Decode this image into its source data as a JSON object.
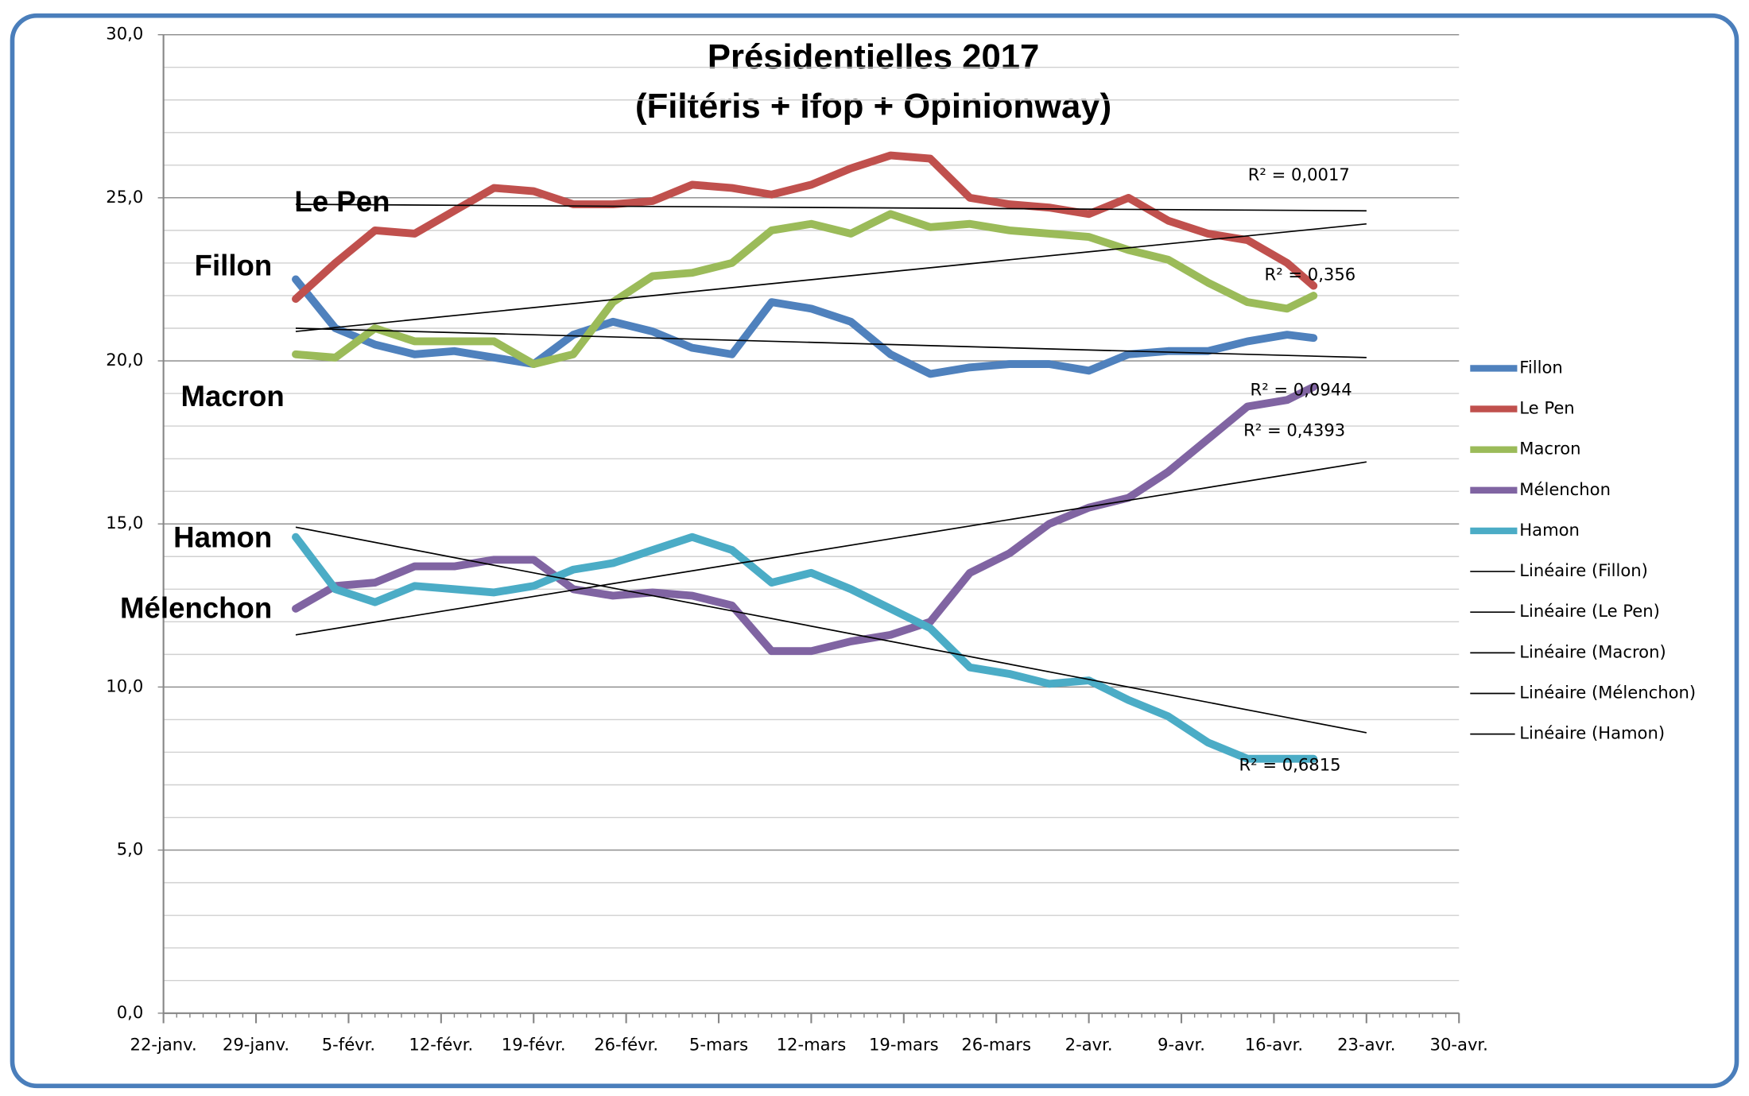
{
  "chart_data": {
    "type": "line",
    "title": "Présidentielles 2017",
    "subtitle": "(Filtéris + Ifop + Opinionway)",
    "x": [
      32,
      35,
      38,
      41,
      44,
      47,
      50,
      53,
      56,
      59,
      62,
      65,
      68,
      71,
      74,
      77,
      80,
      83,
      86,
      89,
      92,
      95,
      98,
      101,
      104,
      107,
      109
    ],
    "series": [
      {
        "name": "Fillon",
        "color": "#4f81bd",
        "values": [
          22.5,
          21.0,
          20.5,
          20.2,
          20.3,
          20.1,
          19.9,
          20.8,
          21.2,
          20.9,
          20.4,
          20.2,
          21.8,
          21.6,
          21.2,
          20.2,
          19.6,
          19.8,
          19.9,
          19.9,
          19.7,
          20.2,
          20.3,
          20.3,
          20.6,
          20.8,
          20.7
        ]
      },
      {
        "name": "Le Pen",
        "color": "#c0504d",
        "values": [
          21.9,
          23.0,
          24.0,
          23.9,
          24.6,
          25.3,
          25.2,
          24.8,
          24.8,
          24.9,
          25.4,
          25.3,
          25.1,
          25.4,
          25.9,
          26.3,
          26.2,
          25.0,
          24.8,
          24.7,
          24.5,
          25.0,
          24.3,
          23.9,
          23.7,
          23.0,
          22.3
        ]
      },
      {
        "name": "Macron",
        "color": "#9bbb59",
        "values": [
          20.2,
          20.1,
          21.0,
          20.6,
          20.6,
          20.6,
          19.9,
          20.2,
          21.8,
          22.6,
          22.7,
          23.0,
          24.0,
          24.2,
          23.9,
          24.5,
          24.1,
          24.2,
          24.0,
          23.9,
          23.8,
          23.4,
          23.1,
          22.4,
          21.8,
          21.6,
          22.0
        ]
      },
      {
        "name": "Mélenchon",
        "color": "#8064a2",
        "values": [
          12.4,
          13.1,
          13.2,
          13.7,
          13.7,
          13.9,
          13.9,
          13.0,
          12.8,
          12.9,
          12.8,
          12.5,
          11.1,
          11.1,
          11.4,
          11.6,
          12.0,
          13.5,
          14.1,
          15.0,
          15.5,
          15.8,
          16.6,
          17.6,
          18.6,
          18.8,
          19.2
        ]
      },
      {
        "name": "Hamon",
        "color": "#4bacc6",
        "values": [
          14.6,
          13.0,
          12.6,
          13.1,
          13.0,
          12.9,
          13.1,
          13.6,
          13.8,
          14.2,
          14.6,
          14.2,
          13.2,
          13.5,
          13.0,
          12.4,
          11.8,
          10.6,
          10.4,
          10.1,
          10.2,
          9.6,
          9.1,
          8.3,
          7.8,
          7.8,
          7.8
        ]
      }
    ],
    "trendlines": [
      {
        "name": "Linéaire (Fillon)",
        "color": "#000000",
        "x": [
          32,
          113
        ],
        "values": [
          21.0,
          20.1
        ],
        "r2_label": "R² = 0,0944"
      },
      {
        "name": "Linéaire (Le Pen)",
        "color": "#000000",
        "x": [
          32,
          113
        ],
        "values": [
          24.8,
          24.6
        ],
        "r2_label": "R² = 0,0017"
      },
      {
        "name": "Linéaire (Macron)",
        "color": "#000000",
        "x": [
          32,
          113
        ],
        "values": [
          20.9,
          24.2
        ],
        "r2_label": "R² = 0,356"
      },
      {
        "name": "Linéaire (Mélenchon)",
        "color": "#000000",
        "x": [
          32,
          113
        ],
        "values": [
          11.6,
          16.9
        ],
        "r2_label": "R² = 0,4393"
      },
      {
        "name": "Linéaire (Hamon)",
        "color": "#000000",
        "x": [
          32,
          113
        ],
        "values": [
          14.9,
          8.6
        ],
        "r2_label": "R² = 0,6815"
      }
    ],
    "annotations": [
      "Le Pen",
      "Fillon",
      "Macron",
      "Hamon",
      "Mélenchon"
    ],
    "xlim": [
      22,
      120
    ],
    "xticks": [
      {
        "value": 22,
        "label": "22-janv."
      },
      {
        "value": 29,
        "label": "29-janv."
      },
      {
        "value": 36,
        "label": "5-févr."
      },
      {
        "value": 43,
        "label": "12-févr."
      },
      {
        "value": 50,
        "label": "19-févr."
      },
      {
        "value": 57,
        "label": "26-févr."
      },
      {
        "value": 64,
        "label": "5-mars"
      },
      {
        "value": 71,
        "label": "12-mars"
      },
      {
        "value": 78,
        "label": "19-mars"
      },
      {
        "value": 85,
        "label": "26-mars"
      },
      {
        "value": 92,
        "label": "2-avr."
      },
      {
        "value": 99,
        "label": "9-avr."
      },
      {
        "value": 106,
        "label": "16-avr."
      },
      {
        "value": 113,
        "label": "23-avr."
      },
      {
        "value": 120,
        "label": "30-avr."
      }
    ],
    "ylim": [
      0,
      30
    ],
    "yticks": [
      {
        "value": 0,
        "label": "0,0"
      },
      {
        "value": 5,
        "label": "5,0"
      },
      {
        "value": 10,
        "label": "10,0"
      },
      {
        "value": 15,
        "label": "15,0"
      },
      {
        "value": 20,
        "label": "20,0"
      },
      {
        "value": 25,
        "label": "25,0"
      },
      {
        "value": 30,
        "label": "30,0"
      }
    ],
    "grid": true,
    "minor_grid_step": 1,
    "x_minor_tick_step": 1,
    "legend": "right"
  }
}
